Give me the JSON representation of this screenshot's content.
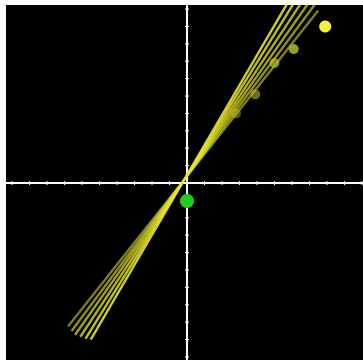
{
  "colors": {
    "background": "#000000",
    "border": "#ffffff",
    "axis": "#ffffff",
    "lines": "#e6e62e",
    "points": "#bfbf2a",
    "latest_point": "#f2f23a",
    "origin_point": "#22cc22"
  },
  "chart_data": {
    "type": "line",
    "title": "",
    "xlabel": "",
    "ylabel": "",
    "xlim": [
      -10,
      10
    ],
    "ylim": [
      -10,
      10
    ],
    "grid": false,
    "axes_through_origin": true,
    "origin": {
      "x": 0,
      "y": 0
    },
    "series": [
      {
        "slope": 1.27,
        "intercept": 0.39,
        "x_range": [
          -6.8,
          7.5
        ]
      },
      {
        "slope": 1.35,
        "intercept": 0.4,
        "x_range": [
          -6.6,
          7.3
        ]
      },
      {
        "slope": 1.43,
        "intercept": 0.42,
        "x_range": [
          -6.4,
          6.9
        ]
      },
      {
        "slope": 1.52,
        "intercept": 0.43,
        "x_range": [
          -6.1,
          6.5
        ]
      },
      {
        "slope": 1.62,
        "intercept": 0.45,
        "x_range": [
          -5.8,
          6.1
        ]
      },
      {
        "slope": 1.72,
        "intercept": 0.46,
        "x_range": [
          -5.5,
          5.7
        ]
      }
    ],
    "points": [
      {
        "x": 2.8,
        "y": 4.0
      },
      {
        "x": 3.9,
        "y": 5.1
      },
      {
        "x": 5.0,
        "y": 6.9
      },
      {
        "x": 6.1,
        "y": 7.7
      },
      {
        "x": 7.9,
        "y": 9.0
      }
    ]
  }
}
